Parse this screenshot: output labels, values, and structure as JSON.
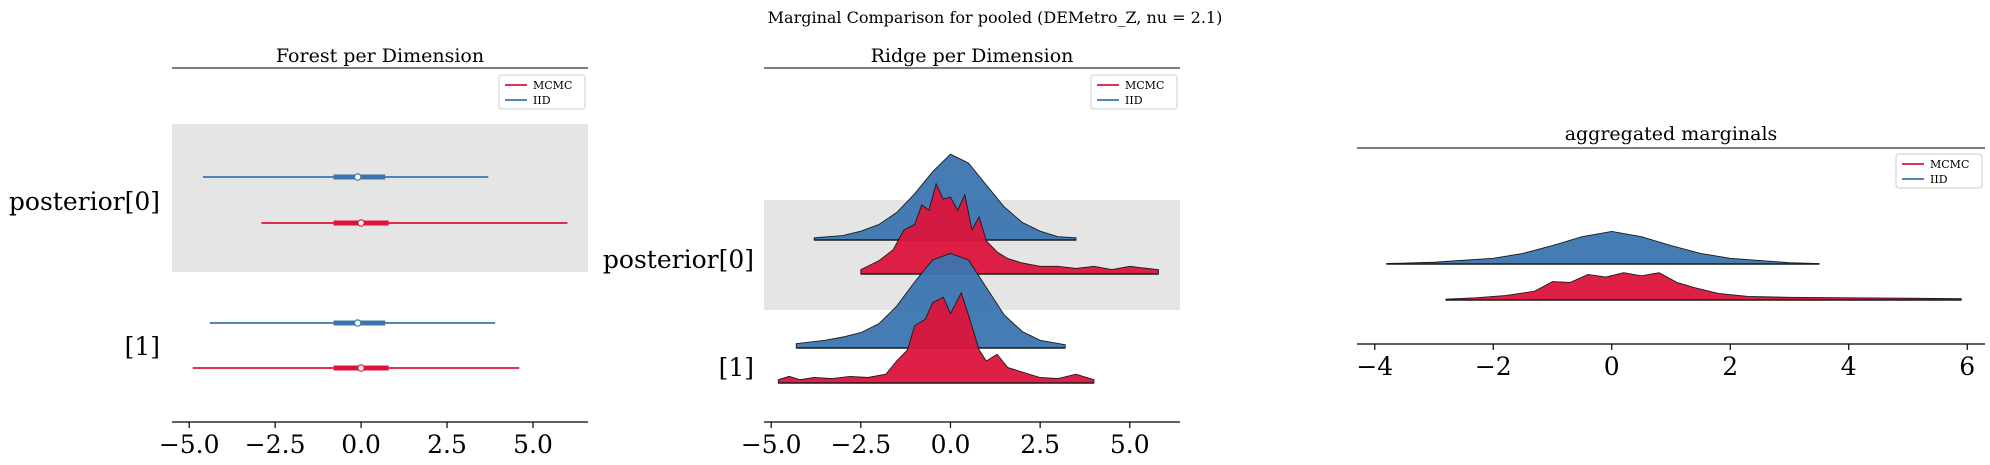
{
  "figure_title": "Marginal Comparison for pooled (DEMetro_Z, nu = 2.1)",
  "colors": {
    "mcmc": "#dc143c",
    "iid": "#3b75af",
    "band": "#e5e5e5"
  },
  "chart_data": [
    {
      "type": "forest",
      "title": "Forest per Dimension",
      "rows": [
        "posterior[0]",
        "[1]"
      ],
      "xlim": [
        -5.5,
        6.6
      ],
      "xticks": [
        -5.0,
        -2.5,
        0.0,
        2.5,
        5.0
      ],
      "xtick_labels": [
        "−5.0",
        "−2.5",
        "0.0",
        "2.5",
        "5.0"
      ],
      "legend": [
        "MCMC",
        "IID"
      ],
      "legend_position": "top-right",
      "series": [
        {
          "name": "MCMC",
          "intervals": [
            {
              "row": 0,
              "low": -2.9,
              "q1": -0.8,
              "median": 0.0,
              "q3": 0.8,
              "high": 6.0
            },
            {
              "row": 1,
              "low": -4.9,
              "q1": -0.8,
              "median": 0.0,
              "q3": 0.8,
              "high": 4.6
            }
          ]
        },
        {
          "name": "IID",
          "intervals": [
            {
              "row": 0,
              "low": -4.6,
              "q1": -0.8,
              "median": -0.1,
              "q3": 0.7,
              "high": 3.7
            },
            {
              "row": 1,
              "low": -4.4,
              "q1": -0.8,
              "median": -0.1,
              "q3": 0.7,
              "high": 3.9
            }
          ]
        }
      ]
    },
    {
      "type": "ridge",
      "title": "Ridge per Dimension",
      "rows": [
        "posterior[0]",
        "[1]"
      ],
      "xlim": [
        -5.2,
        6.4
      ],
      "xticks": [
        -5.0,
        -2.5,
        0.0,
        2.5,
        5.0
      ],
      "xtick_labels": [
        "−5.0",
        "−2.5",
        "0.0",
        "2.5",
        "5.0"
      ],
      "legend": [
        "MCMC",
        "IID"
      ],
      "legend_position": "top-right",
      "series": [
        {
          "name": "IID",
          "row": 0,
          "x": [
            -3.8,
            -3.0,
            -2.5,
            -2.0,
            -1.5,
            -1.0,
            -0.5,
            0.0,
            0.5,
            1.0,
            1.5,
            2.0,
            2.5,
            3.0,
            3.5
          ],
          "density": [
            0.02,
            0.04,
            0.08,
            0.14,
            0.25,
            0.42,
            0.62,
            0.78,
            0.7,
            0.5,
            0.3,
            0.16,
            0.08,
            0.03,
            0.02
          ]
        },
        {
          "name": "MCMC",
          "row": 0,
          "x": [
            -2.5,
            -2.0,
            -1.6,
            -1.3,
            -1.0,
            -0.8,
            -0.6,
            -0.4,
            -0.2,
            0.0,
            0.2,
            0.4,
            0.6,
            0.8,
            1.0,
            1.3,
            1.6,
            2.0,
            2.5,
            3.0,
            3.5,
            4.0,
            4.5,
            5.0,
            5.5,
            5.8
          ],
          "density": [
            0.04,
            0.12,
            0.22,
            0.4,
            0.45,
            0.63,
            0.58,
            0.82,
            0.68,
            0.7,
            0.58,
            0.72,
            0.4,
            0.52,
            0.3,
            0.2,
            0.14,
            0.1,
            0.07,
            0.07,
            0.05,
            0.07,
            0.04,
            0.07,
            0.05,
            0.04
          ]
        },
        {
          "name": "IID",
          "row": 1,
          "x": [
            -4.3,
            -3.5,
            -3.0,
            -2.5,
            -2.0,
            -1.5,
            -1.0,
            -0.5,
            0.0,
            0.5,
            1.0,
            1.5,
            2.0,
            2.5,
            3.2
          ],
          "density": [
            0.04,
            0.07,
            0.1,
            0.14,
            0.22,
            0.38,
            0.6,
            0.8,
            0.86,
            0.8,
            0.55,
            0.3,
            0.15,
            0.07,
            0.03
          ]
        },
        {
          "name": "MCMC",
          "row": 1,
          "x": [
            -4.8,
            -4.5,
            -4.2,
            -3.8,
            -3.3,
            -2.8,
            -2.3,
            -1.8,
            -1.5,
            -1.2,
            -1.0,
            -0.7,
            -0.5,
            -0.2,
            0.0,
            0.3,
            0.5,
            0.8,
            1.0,
            1.3,
            1.6,
            2.0,
            2.5,
            3.0,
            3.5,
            4.0
          ],
          "density": [
            0.03,
            0.06,
            0.03,
            0.05,
            0.04,
            0.06,
            0.05,
            0.08,
            0.2,
            0.3,
            0.52,
            0.58,
            0.73,
            0.78,
            0.63,
            0.82,
            0.62,
            0.3,
            0.2,
            0.26,
            0.14,
            0.1,
            0.05,
            0.04,
            0.08,
            0.03
          ]
        }
      ]
    },
    {
      "type": "area",
      "title": "aggregated marginals",
      "xlim": [
        -4.3,
        6.3
      ],
      "xticks": [
        -4,
        -2,
        0,
        2,
        4,
        6
      ],
      "xtick_labels": [
        "−4",
        "−2",
        "0",
        "2",
        "4",
        "6"
      ],
      "legend": [
        "MCMC",
        "IID"
      ],
      "legend_position": "top-right",
      "series": [
        {
          "name": "IID",
          "x": [
            -3.8,
            -3.0,
            -2.0,
            -1.5,
            -1.0,
            -0.5,
            0.0,
            0.5,
            1.0,
            1.5,
            2.0,
            3.0,
            3.5
          ],
          "density": [
            0.01,
            0.04,
            0.13,
            0.24,
            0.42,
            0.62,
            0.74,
            0.62,
            0.42,
            0.24,
            0.13,
            0.03,
            0.01
          ]
        },
        {
          "name": "MCMC",
          "x": [
            -2.8,
            -2.3,
            -1.8,
            -1.3,
            -1.0,
            -0.7,
            -0.4,
            -0.1,
            0.2,
            0.5,
            0.8,
            1.1,
            1.4,
            1.8,
            2.3,
            3.0,
            4.0,
            5.0,
            5.9
          ],
          "density": [
            0.02,
            0.05,
            0.1,
            0.2,
            0.42,
            0.4,
            0.58,
            0.52,
            0.62,
            0.55,
            0.62,
            0.4,
            0.28,
            0.15,
            0.08,
            0.06,
            0.05,
            0.04,
            0.03
          ]
        }
      ]
    }
  ]
}
